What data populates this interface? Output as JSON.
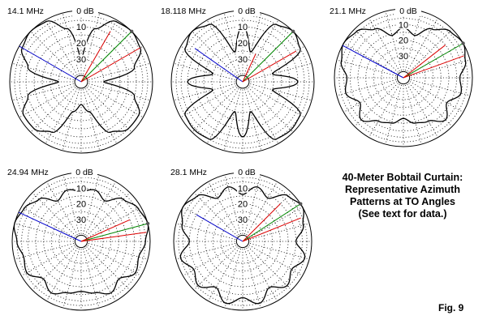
{
  "title_lines": [
    "40-Meter Bobtail Curtain:",
    "Representative Azimuth",
    "Patterns at TO Angles",
    "(See text for data.)"
  ],
  "figure_label": "Fig. 9",
  "colors": {
    "pattern": "#000000",
    "grid": "#000000",
    "blue_line": "#0000cc",
    "red_line": "#dd0000",
    "green_line": "#008800",
    "marker": "#555555"
  },
  "chart_data": [
    {
      "type": "polar",
      "frequency_label": "14.1 MHz",
      "top_label": "0 dB",
      "ring_labels": [
        "10",
        "20",
        "30"
      ],
      "pattern_db": {
        "angles_deg": [
          0,
          15,
          30,
          45,
          60,
          75,
          90,
          105,
          120,
          135,
          150,
          165,
          180,
          195,
          210,
          225,
          240,
          255,
          270,
          285,
          300,
          315,
          330,
          345
        ],
        "values": [
          -30,
          -10,
          -1,
          0,
          -2,
          -10,
          -30,
          -10,
          -3,
          -3,
          -8,
          -25,
          -30,
          -25,
          -8,
          -3,
          -3,
          -10,
          -30,
          -10,
          -2,
          0,
          -1,
          -10
        ]
      },
      "guide_lines": [
        {
          "color": "blue",
          "bearing_deg": 300,
          "level_db": 0
        },
        {
          "color": "green",
          "bearing_deg": 45,
          "level_db": 0
        },
        {
          "color": "red",
          "bearing_deg": 60,
          "level_db": -2
        },
        {
          "color": "red",
          "bearing_deg": 30,
          "level_db": -8
        }
      ],
      "marker": {
        "bearing_deg": 45
      }
    },
    {
      "type": "polar",
      "frequency_label": "18.118 MHz",
      "top_label": "0 dB",
      "ring_labels": [
        "10",
        "20",
        "30"
      ],
      "pattern_db": {
        "angles_deg": [
          0,
          15,
          30,
          45,
          60,
          75,
          90,
          105,
          120,
          135,
          150,
          165,
          180,
          195,
          210,
          225,
          240,
          255,
          270,
          285,
          300,
          315,
          330,
          345
        ],
        "values": [
          -10,
          -25,
          -3,
          0,
          -3,
          -25,
          -10,
          -25,
          -3,
          -2,
          -3,
          -25,
          -10,
          -25,
          -3,
          -2,
          -3,
          -25,
          -10,
          -25,
          -3,
          0,
          -3,
          -25
        ]
      },
      "guide_lines": [
        {
          "color": "blue",
          "bearing_deg": 305,
          "level_db": -8
        },
        {
          "color": "green",
          "bearing_deg": 45,
          "level_db": 0
        },
        {
          "color": "red",
          "bearing_deg": 60,
          "level_db": -6
        },
        {
          "color": "red",
          "bearing_deg": 25,
          "level_db": -25
        }
      ],
      "marker": {
        "bearing_deg": 45
      }
    },
    {
      "type": "polar",
      "frequency_label": "21.1 MHz",
      "top_label": "0 dB",
      "ring_labels": [
        "10",
        "20",
        "30"
      ],
      "pattern_db": {
        "angles_deg": [
          0,
          15,
          30,
          45,
          60,
          75,
          90,
          105,
          120,
          135,
          150,
          165,
          180,
          195,
          210,
          225,
          240,
          255,
          270,
          285,
          300,
          315,
          330,
          345
        ],
        "values": [
          -12,
          -16,
          -8,
          -2,
          0,
          -3,
          -8,
          -6,
          -12,
          -6,
          -12,
          -14,
          -18,
          -14,
          -12,
          -6,
          -12,
          -6,
          -8,
          -3,
          0,
          -2,
          -8,
          -16
        ]
      },
      "guide_lines": [
        {
          "color": "blue",
          "bearing_deg": 298,
          "level_db": 0
        },
        {
          "color": "green",
          "bearing_deg": 60,
          "level_db": 0
        },
        {
          "color": "red",
          "bearing_deg": 70,
          "level_db": -3
        },
        {
          "color": "red",
          "bearing_deg": 52,
          "level_db": -10
        }
      ],
      "marker": {
        "bearing_deg": 60
      }
    },
    {
      "type": "polar",
      "frequency_label": "24.94 MHz",
      "top_label": "0 dB",
      "ring_labels": [
        "10",
        "20",
        "30"
      ],
      "pattern_db": {
        "angles_deg": [
          0,
          15,
          30,
          45,
          60,
          75,
          90,
          105,
          120,
          135,
          150,
          165,
          180,
          195,
          210,
          225,
          240,
          255,
          270,
          285,
          300,
          315,
          330,
          345
        ],
        "values": [
          -12,
          -10,
          -14,
          -6,
          -2,
          0,
          -3,
          -6,
          -4,
          -10,
          -6,
          -10,
          -12,
          -10,
          -6,
          -10,
          -4,
          -6,
          -3,
          0,
          -2,
          -6,
          -14,
          -10
        ]
      },
      "guide_lines": [
        {
          "color": "blue",
          "bearing_deg": 295,
          "level_db": 0
        },
        {
          "color": "green",
          "bearing_deg": 75,
          "level_db": 0
        },
        {
          "color": "red",
          "bearing_deg": 82,
          "level_db": -2
        },
        {
          "color": "red",
          "bearing_deg": 66,
          "level_db": -10
        }
      ],
      "marker": {
        "bearing_deg": 75
      }
    },
    {
      "type": "polar",
      "frequency_label": "28.1 MHz",
      "top_label": "0 dB",
      "ring_labels": [
        "10",
        "20",
        "30"
      ],
      "pattern_db": {
        "angles_deg": [
          0,
          15,
          30,
          45,
          60,
          75,
          90,
          105,
          120,
          135,
          150,
          165,
          180,
          195,
          210,
          225,
          240,
          255,
          270,
          285,
          300,
          315,
          330,
          345
        ],
        "values": [
          -14,
          -8,
          -12,
          -3,
          0,
          -4,
          -10,
          -3,
          -8,
          -4,
          -10,
          -3,
          -8,
          -3,
          -10,
          -4,
          -8,
          -3,
          -10,
          -4,
          0,
          -3,
          -12,
          -8
        ]
      },
      "guide_lines": [
        {
          "color": "blue",
          "bearing_deg": 300,
          "level_db": -10
        },
        {
          "color": "green",
          "bearing_deg": 57,
          "level_db": 0
        },
        {
          "color": "red",
          "bearing_deg": 68,
          "level_db": -4
        },
        {
          "color": "red",
          "bearing_deg": 45,
          "level_db": -10
        }
      ],
      "marker": {
        "bearing_deg": 57
      }
    }
  ]
}
